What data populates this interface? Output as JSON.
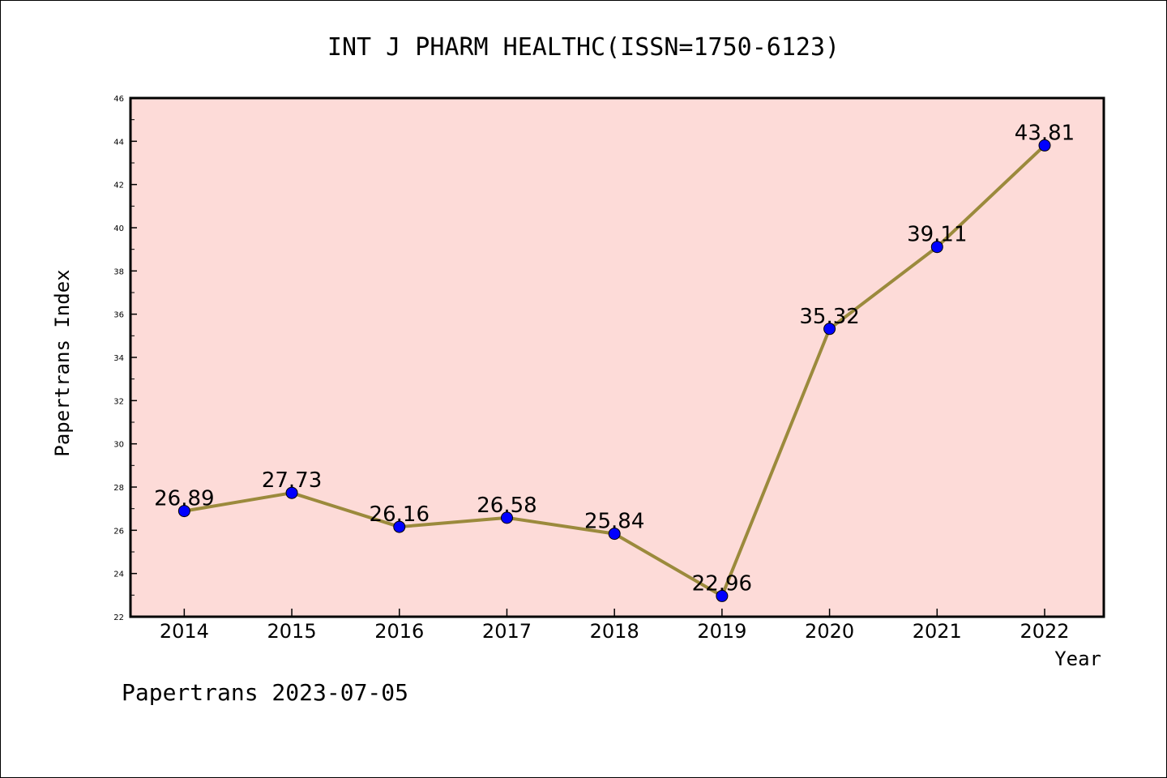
{
  "chart_data": {
    "type": "line",
    "title": "INT J PHARM HEALTHC(ISSN=1750-6123)",
    "xlabel": "Year",
    "ylabel": "Papertrans Index",
    "categories": [
      "2014",
      "2015",
      "2016",
      "2017",
      "2018",
      "2019",
      "2020",
      "2021",
      "2022"
    ],
    "series": [
      {
        "values": [
          26.89,
          27.73,
          26.16,
          26.58,
          25.84,
          22.96,
          35.32,
          39.11,
          43.81
        ],
        "labels": [
          "26.89",
          "27.73",
          "26.16",
          "26.58",
          "25.84",
          "22.96",
          "35.32",
          "39.11",
          "43.81"
        ]
      }
    ],
    "ylim": [
      22,
      46
    ],
    "yticks": [
      "22",
      "24",
      "26",
      "28",
      "30",
      "32",
      "34",
      "36",
      "38",
      "40",
      "42",
      "44",
      "46"
    ],
    "grid": false,
    "colors": {
      "plot_background": "#fddbd8",
      "line": "#9b8a3c",
      "marker": "#0000ff"
    }
  },
  "footer": {
    "text": "Papertrans 2023-07-05"
  }
}
